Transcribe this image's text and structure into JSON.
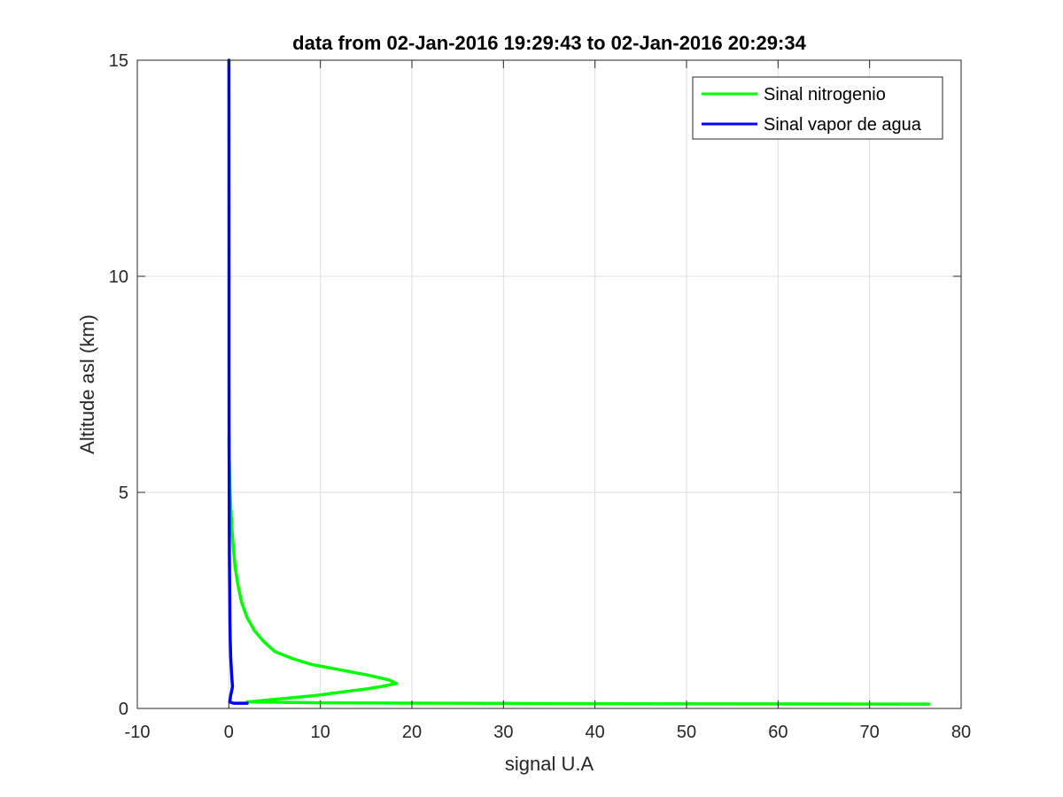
{
  "chart_data": {
    "type": "line",
    "title": "data from 02-Jan-2016 19:29:43 to 02-Jan-2016 20:29:34",
    "xlabel": "signal U.A",
    "ylabel": "Altitude asl (km)",
    "xlim": [
      -10,
      80
    ],
    "ylim": [
      0,
      15
    ],
    "xticks": [
      -10,
      0,
      10,
      20,
      30,
      40,
      50,
      60,
      70,
      80
    ],
    "yticks": [
      0,
      5,
      10,
      15
    ],
    "grid": true,
    "legend_position": "top-right",
    "series": [
      {
        "name": "Sinal nitrogenio",
        "color": "#00ff00",
        "x": [
          76.5,
          40,
          10,
          6,
          2,
          9.5,
          12,
          15,
          17,
          18.3,
          17.5,
          15,
          12,
          9,
          7,
          5,
          3.8,
          2.8,
          2.0,
          1.4,
          1.0,
          0.7,
          0.5,
          0.35,
          0.25,
          0.18,
          0.12,
          0.08,
          0.05,
          0.03,
          0.02
        ],
        "y": [
          0.1,
          0.11,
          0.13,
          0.14,
          0.15,
          0.3,
          0.37,
          0.45,
          0.52,
          0.58,
          0.66,
          0.78,
          0.9,
          1.02,
          1.15,
          1.32,
          1.55,
          1.8,
          2.1,
          2.45,
          2.85,
          3.25,
          3.7,
          4.1,
          4.5,
          4.8,
          5.1,
          5.4,
          5.7,
          6.0,
          6.3
        ]
      },
      {
        "name": "Sinal vapor de agua",
        "color": "#0000ff",
        "x": [
          2.0,
          0.5,
          0.1,
          0.2,
          0.4,
          0.3,
          0.2,
          0.15,
          0.12,
          0.1,
          0.08,
          0.06,
          0.05,
          0.04,
          0.03,
          0.02,
          0.02,
          0.01
        ],
        "y": [
          0.12,
          0.12,
          0.15,
          0.3,
          0.5,
          0.8,
          1.2,
          1.6,
          2.0,
          2.5,
          3.0,
          3.5,
          4.0,
          5.0,
          6.0,
          8.0,
          10.0,
          15.0
        ]
      }
    ]
  }
}
